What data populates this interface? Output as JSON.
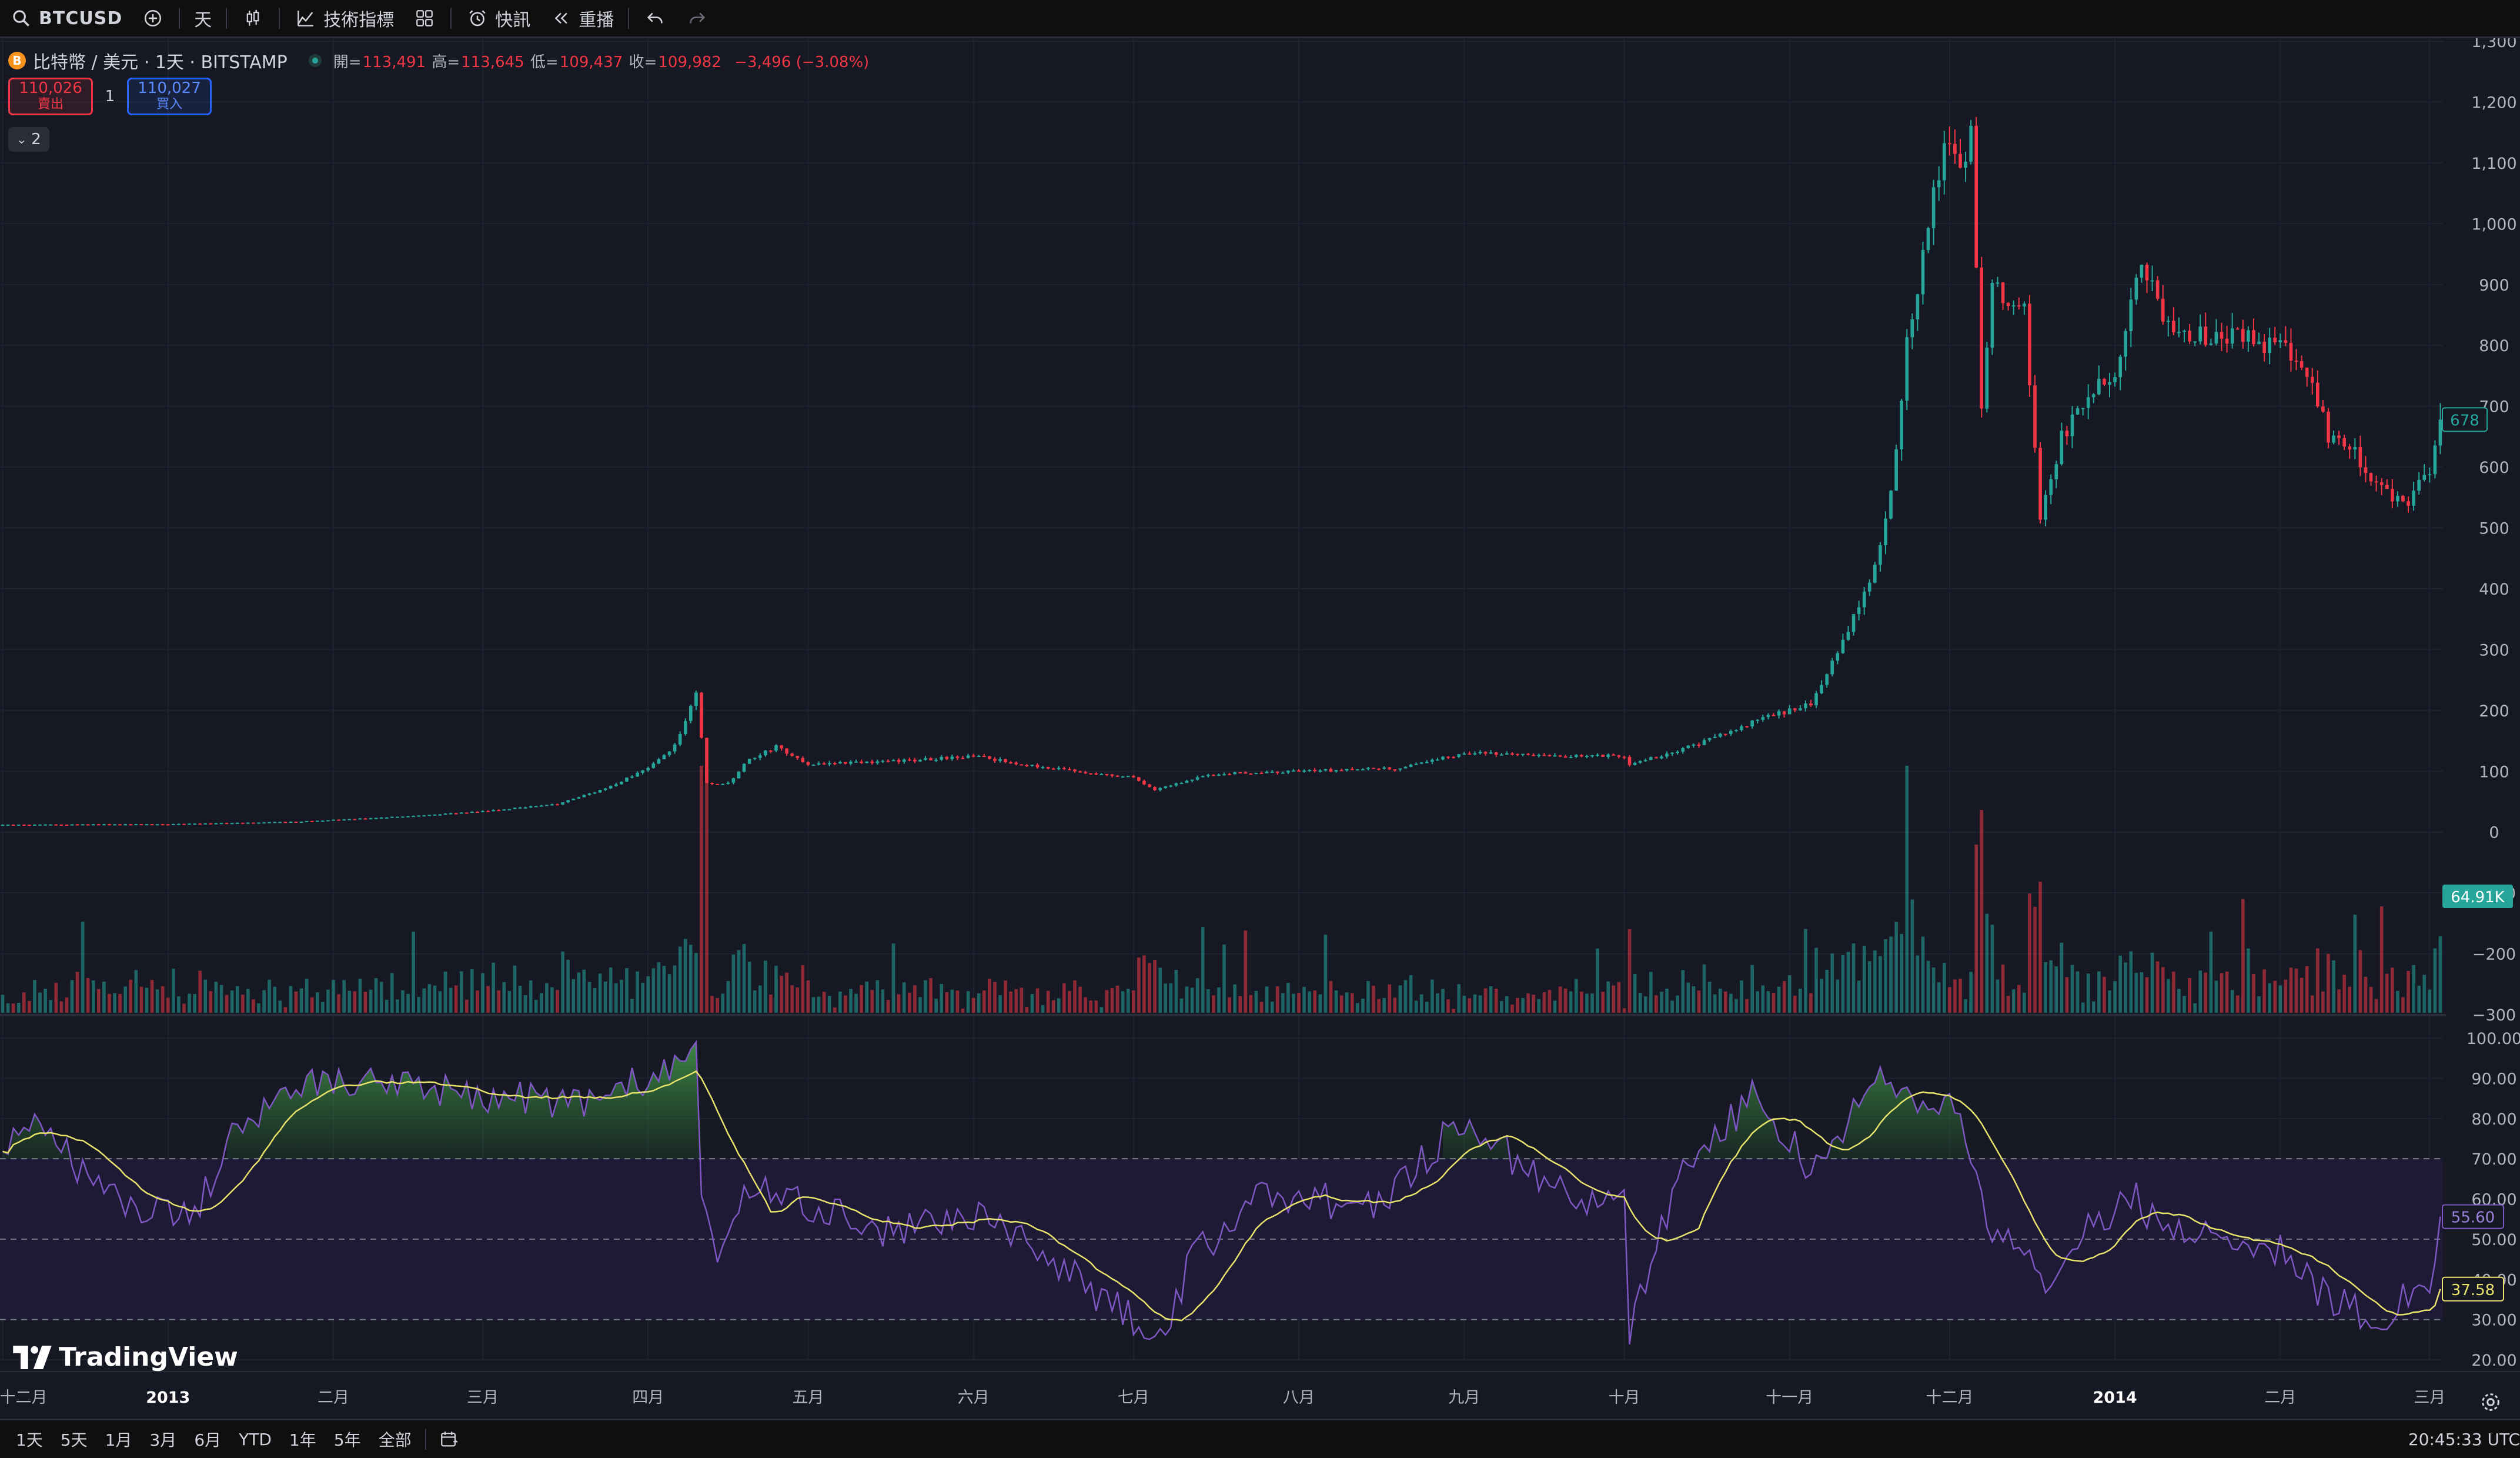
{
  "toolbar": {
    "symbol": "BTCUSD",
    "interval": "天",
    "indicators_label": "技術指標",
    "alerts_label": "快訊",
    "replay_label": "重播"
  },
  "legend": {
    "title": "比特幣 / 美元 · 1天 · BITSTAMP",
    "coin_icon_text": "B",
    "open_label": "開=",
    "open": "113,491",
    "high_label": "高=",
    "high": "113,645",
    "low_label": "低=",
    "low": "109,437",
    "close_label": "收=",
    "close": "109,982",
    "change": "−3,496 (−3.08%)"
  },
  "trade": {
    "sell_price": "110,026",
    "sell_label": "賣出",
    "spread": "1",
    "buy_price": "110,027",
    "buy_label": "買入",
    "indicator_count": "2"
  },
  "price_axis": {
    "labels": [
      "1,300",
      "1,200",
      "1,100",
      "1,000",
      "900",
      "800",
      "700",
      "600",
      "500",
      "400",
      "300",
      "200",
      "100",
      "0",
      "−100",
      "−200",
      "−300"
    ],
    "last_price": "678",
    "volume_badge": "64.91K"
  },
  "rsi_axis": {
    "labels": [
      "100.00",
      "90.00",
      "80.00",
      "70.00",
      "60.00",
      "50.00",
      "40.00",
      "30.00",
      "20.00"
    ],
    "rsi_value": "55.60",
    "rsi_ma_value": "37.58"
  },
  "time_axis": {
    "labels": [
      "十二月",
      "2013",
      "二月",
      "三月",
      "四月",
      "五月",
      "六月",
      "七月",
      "八月",
      "九月",
      "十月",
      "十一月",
      "十二月",
      "2014",
      "二月",
      "三月"
    ]
  },
  "bottom": {
    "ranges": [
      "1天",
      "5天",
      "1月",
      "3月",
      "6月",
      "YTD",
      "1年",
      "5年",
      "全部"
    ],
    "time": "20:45:33 UTC"
  },
  "watermark": "TradingView",
  "colors": {
    "up": "#26a69a",
    "down": "#f23645",
    "rsi": "#7e57c2",
    "rsi_ma": "#e8e36a",
    "background": "#161924"
  },
  "chart_data": {
    "type": "candlestick",
    "symbol": "BTCUSD",
    "exchange": "BITSTAMP",
    "interval": "1天",
    "price_anchors": [
      [
        "2012-12-01",
        12
      ],
      [
        "2013-01-01",
        13
      ],
      [
        "2013-01-25",
        17
      ],
      [
        "2013-02-15",
        26
      ],
      [
        "2013-03-01",
        34
      ],
      [
        "2013-03-15",
        46
      ],
      [
        "2013-03-25",
        75
      ],
      [
        "2013-04-01",
        105
      ],
      [
        "2013-04-06",
        142
      ],
      [
        "2013-04-10",
        230
      ],
      [
        "2013-04-12",
        80
      ],
      [
        "2013-04-16",
        80
      ],
      [
        "2013-04-20",
        120
      ],
      [
        "2013-04-25",
        140
      ],
      [
        "2013-05-01",
        112
      ],
      [
        "2013-05-15",
        115
      ],
      [
        "2013-06-01",
        125
      ],
      [
        "2013-06-15",
        105
      ],
      [
        "2013-07-01",
        90
      ],
      [
        "2013-07-05",
        70
      ],
      [
        "2013-07-15",
        95
      ],
      [
        "2013-08-01",
        100
      ],
      [
        "2013-08-20",
        105
      ],
      [
        "2013-09-01",
        130
      ],
      [
        "2013-09-15",
        125
      ],
      [
        "2013-10-01",
        125
      ],
      [
        "2013-10-02",
        110
      ],
      [
        "2013-10-15",
        145
      ],
      [
        "2013-10-28",
        190
      ],
      [
        "2013-11-05",
        210
      ],
      [
        "2013-11-12",
        330
      ],
      [
        "2013-11-17",
        440
      ],
      [
        "2013-11-20",
        560
      ],
      [
        "2013-11-23",
        800
      ],
      [
        "2013-11-28",
        1050
      ],
      [
        "2013-11-30",
        1130
      ],
      [
        "2013-12-03",
        1080
      ],
      [
        "2013-12-05",
        1140
      ],
      [
        "2013-12-07",
        700
      ],
      [
        "2013-12-09",
        900
      ],
      [
        "2013-12-15",
        860
      ],
      [
        "2013-12-18",
        520
      ],
      [
        "2013-12-22",
        650
      ],
      [
        "2013-12-28",
        720
      ],
      [
        "2014-01-01",
        760
      ],
      [
        "2014-01-06",
        930
      ],
      [
        "2014-01-10",
        850
      ],
      [
        "2014-01-15",
        820
      ],
      [
        "2014-01-25",
        810
      ],
      [
        "2014-02-01",
        800
      ],
      [
        "2014-02-06",
        760
      ],
      [
        "2014-02-10",
        650
      ],
      [
        "2014-02-15",
        620
      ],
      [
        "2014-02-20",
        560
      ],
      [
        "2014-02-25",
        540
      ],
      [
        "2014-03-01",
        600
      ],
      [
        "2014-03-03",
        678
      ]
    ],
    "rsi_anchors": [
      [
        "2012-12-01",
        73
      ],
      [
        "2012-12-05",
        82
      ],
      [
        "2012-12-15",
        68
      ],
      [
        "2012-12-25",
        58
      ],
      [
        "2013-01-05",
        55
      ],
      [
        "2013-01-15",
        80
      ],
      [
        "2013-01-25",
        88
      ],
      [
        "2013-02-10",
        88
      ],
      [
        "2013-03-01",
        86
      ],
      [
        "2013-03-20",
        84
      ],
      [
        "2013-04-05",
        92
      ],
      [
        "2013-04-10",
        95
      ],
      [
        "2013-04-11",
        60
      ],
      [
        "2013-04-14",
        48
      ],
      [
        "2013-04-20",
        62
      ],
      [
        "2013-05-01",
        58
      ],
      [
        "2013-05-15",
        52
      ],
      [
        "2013-06-01",
        56
      ],
      [
        "2013-06-15",
        45
      ],
      [
        "2013-07-01",
        30
      ],
      [
        "2013-07-05",
        23
      ],
      [
        "2013-07-12",
        45
      ],
      [
        "2013-07-25",
        62
      ],
      [
        "2013-08-15",
        58
      ],
      [
        "2013-09-01",
        80
      ],
      [
        "2013-09-10",
        70
      ],
      [
        "2013-09-25",
        58
      ],
      [
        "2013-10-01",
        60
      ],
      [
        "2013-10-02",
        28
      ],
      [
        "2013-10-12",
        68
      ],
      [
        "2013-10-25",
        85
      ],
      [
        "2013-11-05",
        68
      ],
      [
        "2013-11-15",
        84
      ],
      [
        "2013-11-18",
        92
      ],
      [
        "2013-11-25",
        82
      ],
      [
        "2013-12-01",
        85
      ],
      [
        "2013-12-05",
        72
      ],
      [
        "2013-12-08",
        52
      ],
      [
        "2013-12-15",
        48
      ],
      [
        "2013-12-18",
        38
      ],
      [
        "2013-12-25",
        52
      ],
      [
        "2014-01-05",
        60
      ],
      [
        "2014-01-10",
        52
      ],
      [
        "2014-01-20",
        51
      ],
      [
        "2014-02-01",
        48
      ],
      [
        "2014-02-10",
        35
      ],
      [
        "2014-02-20",
        30
      ],
      [
        "2014-02-25",
        36
      ],
      [
        "2014-03-01",
        40
      ],
      [
        "2014-03-03",
        55.6
      ]
    ],
    "rsi_ma_period": 14,
    "rsi_levels": [
      70,
      50,
      30
    ],
    "ylim_price": [
      -300,
      1300
    ],
    "ylim_rsi": [
      20,
      100
    ],
    "x_range": [
      "2012-12-01",
      "2014-03-03"
    ]
  }
}
